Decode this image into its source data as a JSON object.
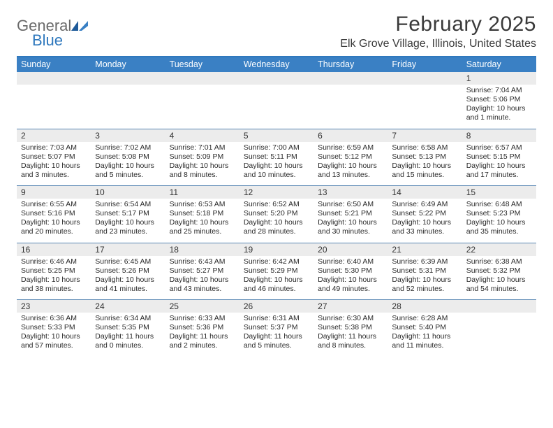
{
  "logo": {
    "general": "General",
    "blue": "Blue"
  },
  "title": "February 2025",
  "location": "Elk Grove Village, Illinois, United States",
  "colors": {
    "header_bar": "#3a80c4",
    "header_border": "#2f78bd",
    "daynum_bg": "#ececec",
    "week_divider": "#5a88b4",
    "text": "#2a2a2a",
    "title_text": "#3a3a3a"
  },
  "dow": [
    "Sunday",
    "Monday",
    "Tuesday",
    "Wednesday",
    "Thursday",
    "Friday",
    "Saturday"
  ],
  "weeks": [
    [
      null,
      null,
      null,
      null,
      null,
      null,
      {
        "n": "1",
        "sunrise": "7:04 AM",
        "sunset": "5:06 PM",
        "daylight": "10 hours and 1 minute."
      }
    ],
    [
      {
        "n": "2",
        "sunrise": "7:03 AM",
        "sunset": "5:07 PM",
        "daylight": "10 hours and 3 minutes."
      },
      {
        "n": "3",
        "sunrise": "7:02 AM",
        "sunset": "5:08 PM",
        "daylight": "10 hours and 5 minutes."
      },
      {
        "n": "4",
        "sunrise": "7:01 AM",
        "sunset": "5:09 PM",
        "daylight": "10 hours and 8 minutes."
      },
      {
        "n": "5",
        "sunrise": "7:00 AM",
        "sunset": "5:11 PM",
        "daylight": "10 hours and 10 minutes."
      },
      {
        "n": "6",
        "sunrise": "6:59 AM",
        "sunset": "5:12 PM",
        "daylight": "10 hours and 13 minutes."
      },
      {
        "n": "7",
        "sunrise": "6:58 AM",
        "sunset": "5:13 PM",
        "daylight": "10 hours and 15 minutes."
      },
      {
        "n": "8",
        "sunrise": "6:57 AM",
        "sunset": "5:15 PM",
        "daylight": "10 hours and 17 minutes."
      }
    ],
    [
      {
        "n": "9",
        "sunrise": "6:55 AM",
        "sunset": "5:16 PM",
        "daylight": "10 hours and 20 minutes."
      },
      {
        "n": "10",
        "sunrise": "6:54 AM",
        "sunset": "5:17 PM",
        "daylight": "10 hours and 23 minutes."
      },
      {
        "n": "11",
        "sunrise": "6:53 AM",
        "sunset": "5:18 PM",
        "daylight": "10 hours and 25 minutes."
      },
      {
        "n": "12",
        "sunrise": "6:52 AM",
        "sunset": "5:20 PM",
        "daylight": "10 hours and 28 minutes."
      },
      {
        "n": "13",
        "sunrise": "6:50 AM",
        "sunset": "5:21 PM",
        "daylight": "10 hours and 30 minutes."
      },
      {
        "n": "14",
        "sunrise": "6:49 AM",
        "sunset": "5:22 PM",
        "daylight": "10 hours and 33 minutes."
      },
      {
        "n": "15",
        "sunrise": "6:48 AM",
        "sunset": "5:23 PM",
        "daylight": "10 hours and 35 minutes."
      }
    ],
    [
      {
        "n": "16",
        "sunrise": "6:46 AM",
        "sunset": "5:25 PM",
        "daylight": "10 hours and 38 minutes."
      },
      {
        "n": "17",
        "sunrise": "6:45 AM",
        "sunset": "5:26 PM",
        "daylight": "10 hours and 41 minutes."
      },
      {
        "n": "18",
        "sunrise": "6:43 AM",
        "sunset": "5:27 PM",
        "daylight": "10 hours and 43 minutes."
      },
      {
        "n": "19",
        "sunrise": "6:42 AM",
        "sunset": "5:29 PM",
        "daylight": "10 hours and 46 minutes."
      },
      {
        "n": "20",
        "sunrise": "6:40 AM",
        "sunset": "5:30 PM",
        "daylight": "10 hours and 49 minutes."
      },
      {
        "n": "21",
        "sunrise": "6:39 AM",
        "sunset": "5:31 PM",
        "daylight": "10 hours and 52 minutes."
      },
      {
        "n": "22",
        "sunrise": "6:38 AM",
        "sunset": "5:32 PM",
        "daylight": "10 hours and 54 minutes."
      }
    ],
    [
      {
        "n": "23",
        "sunrise": "6:36 AM",
        "sunset": "5:33 PM",
        "daylight": "10 hours and 57 minutes."
      },
      {
        "n": "24",
        "sunrise": "6:34 AM",
        "sunset": "5:35 PM",
        "daylight": "11 hours and 0 minutes."
      },
      {
        "n": "25",
        "sunrise": "6:33 AM",
        "sunset": "5:36 PM",
        "daylight": "11 hours and 2 minutes."
      },
      {
        "n": "26",
        "sunrise": "6:31 AM",
        "sunset": "5:37 PM",
        "daylight": "11 hours and 5 minutes."
      },
      {
        "n": "27",
        "sunrise": "6:30 AM",
        "sunset": "5:38 PM",
        "daylight": "11 hours and 8 minutes."
      },
      {
        "n": "28",
        "sunrise": "6:28 AM",
        "sunset": "5:40 PM",
        "daylight": "11 hours and 11 minutes."
      },
      null
    ]
  ],
  "labels": {
    "sunrise": "Sunrise:",
    "sunset": "Sunset:",
    "daylight": "Daylight:"
  }
}
